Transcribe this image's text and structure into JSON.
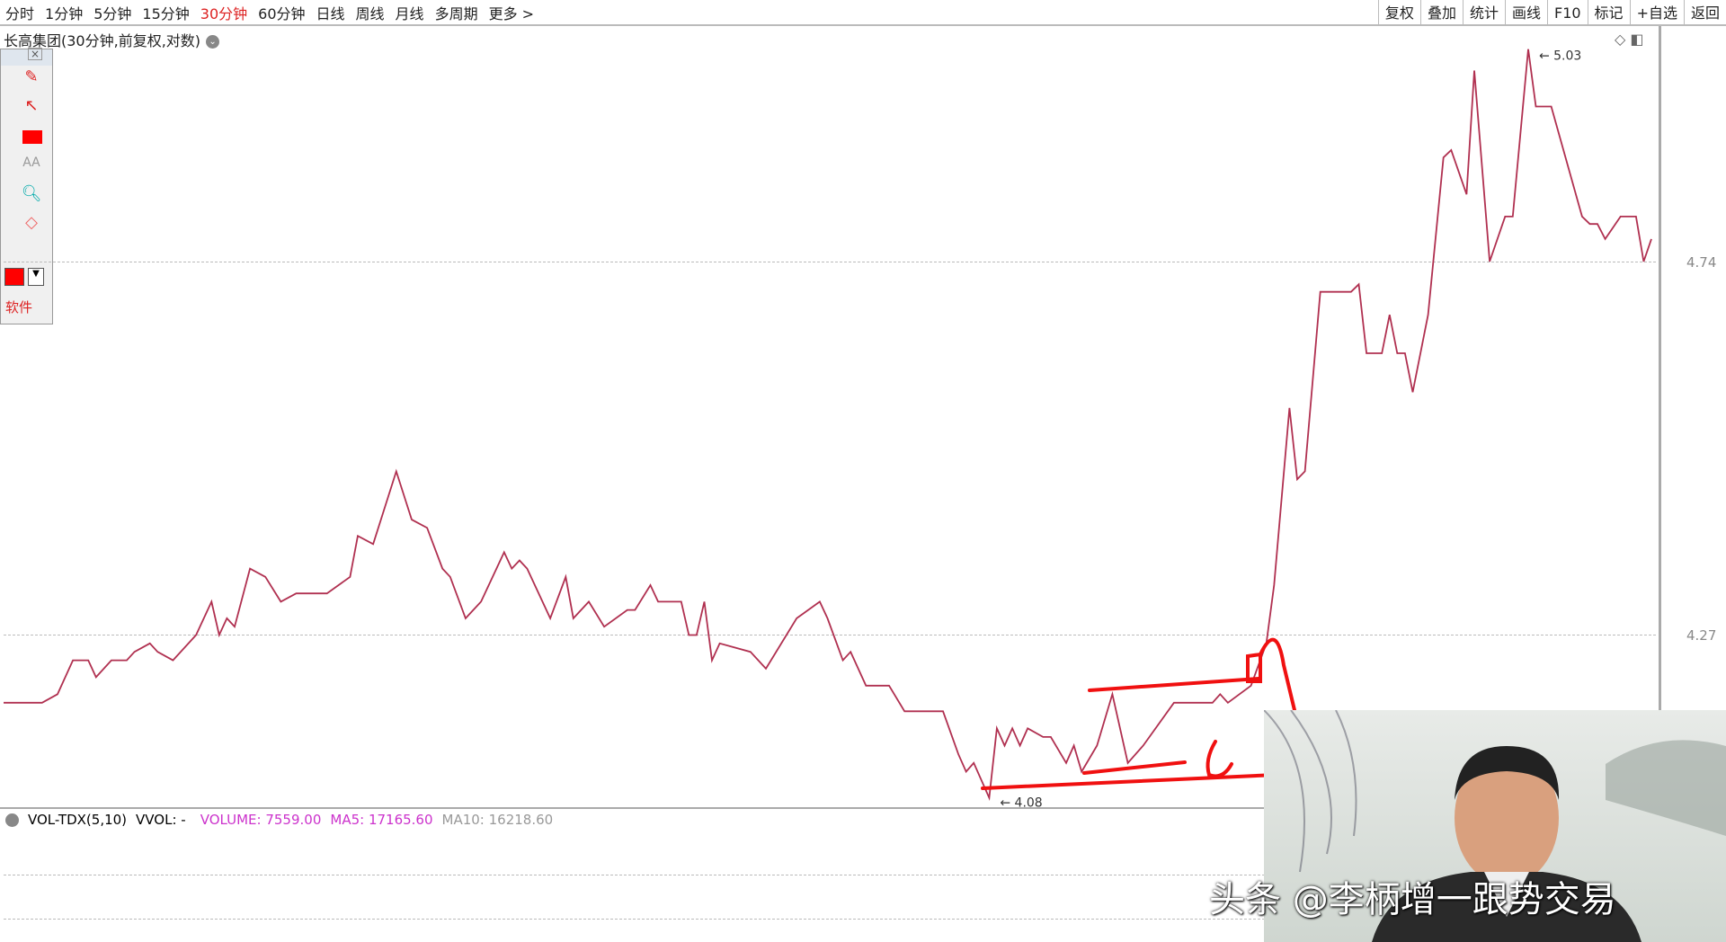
{
  "toolbar": {
    "periods": [
      "分时",
      "1分钟",
      "5分钟",
      "15分钟",
      "30分钟",
      "60分钟",
      "日线",
      "周线",
      "月线",
      "多周期",
      "更多 >"
    ],
    "active_period": "30分钟",
    "right_buttons": [
      "复权",
      "叠加",
      "统计",
      "画线",
      "F10",
      "标记",
      "+自选",
      "返回"
    ]
  },
  "chart_title": "长高集团(30分钟,前复权,对数)",
  "toolbox": {
    "software_label": "软件",
    "color": "#ff0000"
  },
  "volume_panel": {
    "name": "VOL-TDX(5,10)",
    "vvol": "VVOL: -",
    "volume": "VOLUME: 7559.00",
    "ma5": "MA5: 17165.60",
    "ma10": "MA10: 16218.60",
    "colors": {
      "volume": "#cc33cc",
      "ma5": "#cc33cc",
      "ma10": "#999999"
    }
  },
  "watermark": "头条 @李柄增一跟势交易",
  "chart_data": {
    "type": "line",
    "scale": "log",
    "line_color": "#b03050",
    "y_ticks": [
      4.74,
      4.27
    ],
    "max_label": "5.03",
    "min_label": "4.08",
    "x": [
      0,
      5,
      7,
      9,
      11,
      12,
      14,
      16,
      17,
      19,
      20,
      22,
      25,
      27,
      28,
      29,
      30,
      32,
      34,
      36,
      38,
      42,
      45,
      46,
      48,
      51,
      53,
      55,
      57,
      58,
      60,
      62,
      65,
      66,
      67,
      68,
      71,
      73,
      74,
      76,
      78,
      81,
      82,
      84,
      85,
      88,
      89,
      90,
      91,
      92,
      93,
      97,
      99,
      103,
      106,
      107,
      109,
      110,
      112,
      115,
      117,
      122,
      124,
      125,
      126,
      128,
      129,
      130,
      131,
      132,
      133,
      135,
      136,
      138,
      139,
      140,
      142,
      144,
      146,
      148,
      152,
      157,
      158,
      159,
      162,
      164,
      165,
      167,
      168,
      169,
      171,
      175,
      176,
      177,
      179,
      180,
      181,
      182,
      183,
      185,
      187,
      188,
      190,
      191,
      193,
      195,
      196,
      198,
      199,
      201,
      205,
      206,
      207,
      208,
      210,
      212,
      213,
      214
    ],
    "values": [
      4.19,
      4.19,
      4.2,
      4.24,
      4.24,
      4.22,
      4.24,
      4.24,
      4.25,
      4.26,
      4.25,
      4.24,
      4.27,
      4.31,
      4.27,
      4.29,
      4.28,
      4.35,
      4.34,
      4.31,
      4.32,
      4.32,
      4.34,
      4.39,
      4.38,
      4.47,
      4.41,
      4.4,
      4.35,
      4.34,
      4.29,
      4.31,
      4.37,
      4.35,
      4.36,
      4.35,
      4.29,
      4.34,
      4.29,
      4.31,
      4.28,
      4.3,
      4.3,
      4.33,
      4.31,
      4.31,
      4.27,
      4.27,
      4.31,
      4.24,
      4.26,
      4.25,
      4.23,
      4.29,
      4.31,
      4.29,
      4.24,
      4.25,
      4.21,
      4.21,
      4.18,
      4.18,
      4.13,
      4.11,
      4.12,
      4.08,
      4.16,
      4.14,
      4.16,
      4.14,
      4.16,
      4.15,
      4.15,
      4.12,
      4.14,
      4.11,
      4.14,
      4.2,
      4.12,
      4.14,
      4.19,
      4.19,
      4.2,
      4.19,
      4.21,
      4.26,
      4.33,
      4.55,
      4.46,
      4.47,
      4.7,
      4.7,
      4.71,
      4.62,
      4.62,
      4.67,
      4.62,
      4.62,
      4.57,
      4.67,
      4.88,
      4.89,
      4.83,
      5.0,
      4.74,
      4.8,
      4.8,
      5.03,
      4.95,
      4.95,
      4.8,
      4.79,
      4.79,
      4.77,
      4.8,
      4.8,
      4.74,
      4.77
    ]
  }
}
